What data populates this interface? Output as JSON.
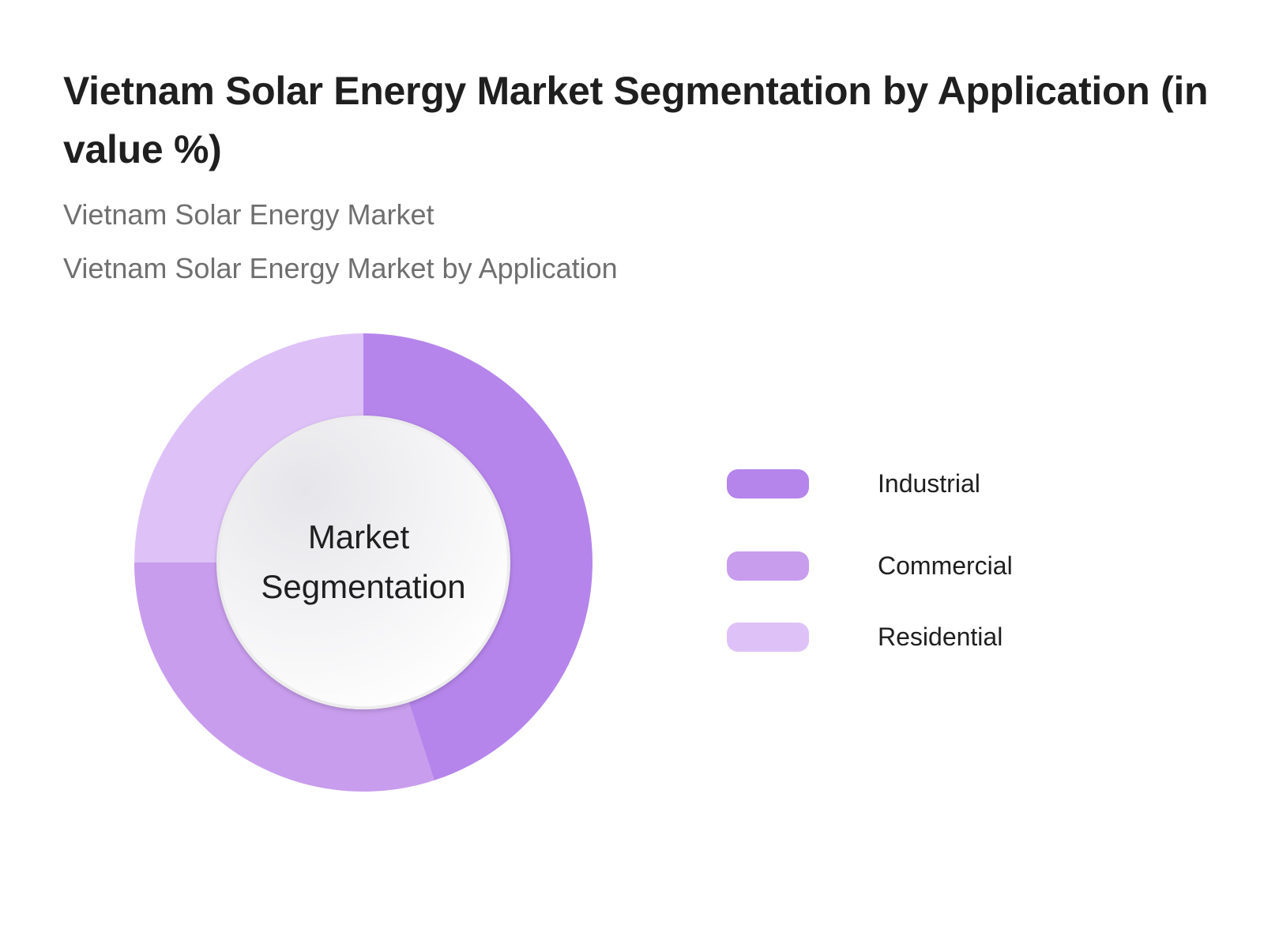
{
  "page": {
    "title": "Vietnam Solar Energy Market Segmentation by Application (in value %)",
    "subtitles": [
      "Vietnam Solar Energy Market",
      "Vietnam Solar Energy Market by Application"
    ]
  },
  "chart_data": {
    "type": "pie",
    "variant": "donut",
    "title": "Vietnam Solar Energy Market Segmentation by Application (in value %)",
    "center_label": [
      "Market",
      "Segmentation"
    ],
    "categories": [
      "Industrial",
      "Commercial",
      "Residential"
    ],
    "values": [
      45,
      30,
      25
    ],
    "colors": [
      "#b585eb",
      "#c89ded",
      "#dec2f7"
    ],
    "legend": {
      "position": "right"
    }
  }
}
